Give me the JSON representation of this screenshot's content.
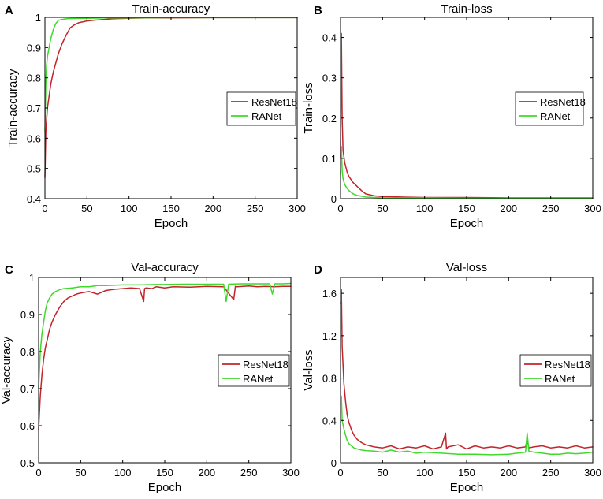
{
  "figure": {
    "colors": {
      "resnet": "#c2242a",
      "ranet": "#3fd92b",
      "axis": "#000000"
    }
  },
  "chart_data": [
    {
      "type": "line",
      "panel_letter": "A",
      "title": "Train-accuracy",
      "xlabel": "Epoch",
      "ylabel": "Train-accuracy",
      "xlim": [
        0,
        300
      ],
      "ylim": [
        0.4,
        1.0
      ],
      "xticks": [
        0,
        50,
        100,
        150,
        200,
        250,
        300
      ],
      "yticks": [
        0.4,
        0.5,
        0.6,
        0.7,
        0.8,
        0.9,
        1
      ],
      "grid": false,
      "legend": "center-right",
      "series": [
        {
          "name": "ResNet18",
          "color": "#c2242a",
          "x": [
            0,
            1,
            2,
            3,
            5,
            7,
            10,
            13,
            16,
            20,
            25,
            30,
            35,
            40,
            50,
            60,
            70,
            80,
            90,
            100,
            120,
            150,
            200,
            250,
            300
          ],
          "y": [
            0.47,
            0.62,
            0.66,
            0.7,
            0.74,
            0.78,
            0.82,
            0.85,
            0.88,
            0.91,
            0.94,
            0.965,
            0.975,
            0.982,
            0.988,
            0.991,
            0.993,
            0.995,
            0.996,
            0.997,
            0.998,
            0.998,
            0.999,
            0.999,
            0.999
          ]
        },
        {
          "name": "RANet",
          "color": "#3fd92b",
          "x": [
            0,
            1,
            2,
            3,
            5,
            7,
            10,
            13,
            16,
            20,
            25,
            30,
            40,
            50,
            70,
            90,
            100,
            150,
            200,
            250,
            300
          ],
          "y": [
            0.62,
            0.78,
            0.84,
            0.87,
            0.9,
            0.93,
            0.96,
            0.98,
            0.99,
            0.993,
            0.995,
            0.996,
            0.997,
            0.997,
            0.998,
            0.998,
            0.998,
            0.999,
            0.999,
            0.999,
            0.999
          ]
        }
      ]
    },
    {
      "type": "line",
      "panel_letter": "B",
      "title": "Train-loss",
      "xlabel": "Epoch",
      "ylabel": "Train-loss",
      "xlim": [
        0,
        300
      ],
      "ylim": [
        0,
        0.45
      ],
      "xticks": [
        0,
        50,
        100,
        150,
        200,
        250,
        300
      ],
      "yticks": [
        0,
        0.1,
        0.2,
        0.3,
        0.4
      ],
      "grid": false,
      "legend": "center-right",
      "series": [
        {
          "name": "ResNet18",
          "color": "#c2242a",
          "x": [
            0,
            1,
            2,
            3,
            5,
            8,
            10,
            15,
            20,
            25,
            30,
            40,
            50,
            75,
            100,
            150,
            200,
            250,
            300
          ],
          "y": [
            0.1,
            0.41,
            0.2,
            0.12,
            0.09,
            0.065,
            0.055,
            0.04,
            0.03,
            0.02,
            0.012,
            0.007,
            0.005,
            0.004,
            0.003,
            0.003,
            0.002,
            0.002,
            0.002
          ]
        },
        {
          "name": "RANet",
          "color": "#3fd92b",
          "x": [
            0,
            1,
            2,
            3,
            5,
            8,
            10,
            15,
            20,
            25,
            30,
            40,
            50,
            100,
            150,
            200,
            250,
            300
          ],
          "y": [
            0.06,
            0.13,
            0.07,
            0.05,
            0.035,
            0.025,
            0.02,
            0.012,
            0.008,
            0.006,
            0.004,
            0.003,
            0.002,
            0.002,
            0.001,
            0.001,
            0.001,
            0.001
          ]
        }
      ]
    },
    {
      "type": "line",
      "panel_letter": "C",
      "title": "Val-accuracy",
      "xlabel": "Epoch",
      "ylabel": "Val-accuracy",
      "xlim": [
        0,
        300
      ],
      "ylim": [
        0.5,
        1.0
      ],
      "xticks": [
        0,
        50,
        100,
        150,
        200,
        250,
        300
      ],
      "yticks": [
        0.5,
        0.6,
        0.7,
        0.8,
        0.9,
        1
      ],
      "grid": false,
      "legend": "center-right",
      "series": [
        {
          "name": "ResNet18",
          "color": "#c2242a",
          "x": [
            0,
            2,
            4,
            6,
            8,
            10,
            13,
            16,
            20,
            25,
            30,
            35,
            40,
            45,
            50,
            55,
            60,
            70,
            80,
            90,
            100,
            110,
            120,
            125,
            126,
            128,
            135,
            140,
            150,
            160,
            180,
            200,
            220,
            232,
            234,
            236,
            250,
            260,
            270,
            280,
            290,
            300
          ],
          "y": [
            0.59,
            0.68,
            0.74,
            0.78,
            0.81,
            0.83,
            0.86,
            0.88,
            0.9,
            0.92,
            0.935,
            0.945,
            0.95,
            0.955,
            0.958,
            0.96,
            0.962,
            0.955,
            0.965,
            0.968,
            0.97,
            0.972,
            0.97,
            0.935,
            0.97,
            0.972,
            0.97,
            0.975,
            0.972,
            0.975,
            0.974,
            0.976,
            0.975,
            0.94,
            0.976,
            0.975,
            0.977,
            0.975,
            0.976,
            0.975,
            0.976,
            0.976
          ]
        },
        {
          "name": "RANet",
          "color": "#3fd92b",
          "x": [
            0,
            2,
            4,
            6,
            8,
            10,
            13,
            16,
            20,
            25,
            30,
            40,
            50,
            60,
            70,
            80,
            100,
            120,
            140,
            150,
            170,
            200,
            220,
            223,
            226,
            240,
            260,
            275,
            278,
            281,
            290,
            300
          ],
          "y": [
            0.7,
            0.8,
            0.85,
            0.88,
            0.91,
            0.93,
            0.945,
            0.955,
            0.962,
            0.967,
            0.97,
            0.972,
            0.975,
            0.975,
            0.978,
            0.978,
            0.98,
            0.98,
            0.981,
            0.981,
            0.982,
            0.982,
            0.982,
            0.935,
            0.982,
            0.983,
            0.983,
            0.983,
            0.955,
            0.983,
            0.983,
            0.984
          ]
        }
      ]
    },
    {
      "type": "line",
      "panel_letter": "D",
      "title": "Val-loss",
      "xlabel": "Epoch",
      "ylabel": "Val-loss",
      "xlim": [
        0,
        300
      ],
      "ylim": [
        0,
        1.75
      ],
      "xticks": [
        0,
        50,
        100,
        150,
        200,
        250,
        300
      ],
      "yticks": [
        0,
        0.4,
        0.8,
        1.2,
        1.6
      ],
      "grid": false,
      "legend": "center-right",
      "series": [
        {
          "name": "ResNet18",
          "color": "#c2242a",
          "x": [
            0,
            1,
            2,
            4,
            6,
            8,
            10,
            13,
            16,
            20,
            25,
            30,
            40,
            50,
            60,
            70,
            80,
            90,
            100,
            110,
            120,
            125,
            126,
            128,
            140,
            150,
            160,
            170,
            180,
            190,
            200,
            210,
            220,
            222,
            224,
            230,
            240,
            250,
            260,
            270,
            280,
            290,
            300
          ],
          "y": [
            1.5,
            1.64,
            1.1,
            0.75,
            0.58,
            0.45,
            0.38,
            0.31,
            0.26,
            0.22,
            0.19,
            0.17,
            0.15,
            0.14,
            0.16,
            0.13,
            0.15,
            0.14,
            0.16,
            0.13,
            0.15,
            0.28,
            0.13,
            0.15,
            0.17,
            0.13,
            0.16,
            0.14,
            0.15,
            0.14,
            0.16,
            0.14,
            0.15,
            0.22,
            0.14,
            0.15,
            0.16,
            0.14,
            0.15,
            0.14,
            0.16,
            0.14,
            0.15
          ]
        },
        {
          "name": "RANet",
          "color": "#3fd92b",
          "x": [
            0,
            1,
            2,
            4,
            6,
            8,
            10,
            13,
            16,
            20,
            25,
            30,
            40,
            50,
            60,
            70,
            80,
            90,
            100,
            120,
            140,
            160,
            180,
            200,
            210,
            220,
            222,
            224,
            230,
            240,
            250,
            260,
            270,
            280,
            290,
            300
          ],
          "y": [
            0.55,
            0.63,
            0.4,
            0.32,
            0.26,
            0.21,
            0.18,
            0.16,
            0.14,
            0.13,
            0.12,
            0.115,
            0.11,
            0.1,
            0.12,
            0.1,
            0.11,
            0.09,
            0.1,
            0.09,
            0.08,
            0.08,
            0.075,
            0.08,
            0.09,
            0.1,
            0.28,
            0.11,
            0.1,
            0.09,
            0.08,
            0.08,
            0.09,
            0.085,
            0.09,
            0.1
          ]
        }
      ]
    }
  ]
}
